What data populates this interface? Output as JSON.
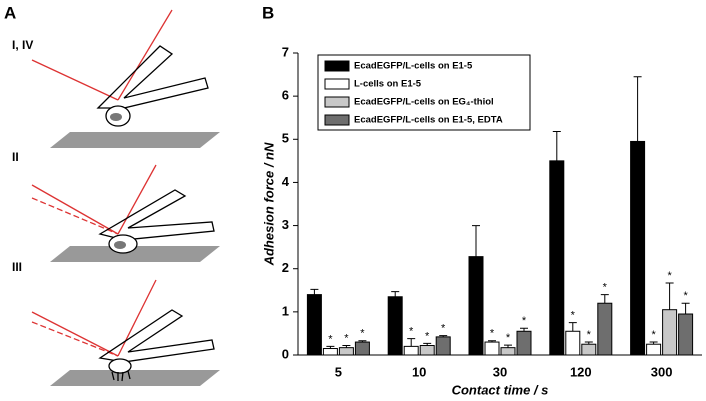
{
  "panel_labels": [
    "A",
    "B"
  ],
  "diagram_labels": [
    "I, IV",
    "II",
    "III"
  ],
  "chart_data": {
    "type": "bar",
    "ylabel": "Adhesion force / nN",
    "xlabel": "Contact time / s",
    "categories": [
      "5",
      "10",
      "30",
      "120",
      "300"
    ],
    "ylim": [
      0,
      7
    ],
    "yticks": [
      0,
      1,
      2,
      3,
      4,
      5,
      6,
      7
    ],
    "significance_marker": "*",
    "legend": "upper left",
    "series": [
      {
        "name": "EcadEGFP/L-cells on E1-5",
        "color": "#000000",
        "values": [
          1.4,
          1.35,
          2.28,
          4.5,
          4.95
        ],
        "errors": [
          0.12,
          0.12,
          0.72,
          0.68,
          1.5
        ]
      },
      {
        "name": "L-cells on E1-5",
        "color": "#ffffff",
        "values": [
          0.15,
          0.2,
          0.3,
          0.55,
          0.25
        ],
        "errors": [
          0.05,
          0.18,
          0.03,
          0.2,
          0.05
        ]
      },
      {
        "name": "EcadEGFP/L-cells on EG₄-thiol",
        "color": "#c8c8c8",
        "values": [
          0.17,
          0.22,
          0.17,
          0.25,
          1.05
        ],
        "errors": [
          0.05,
          0.05,
          0.06,
          0.05,
          0.62
        ]
      },
      {
        "name": "EcadEGFP/L-cells on E1-5, EDTA",
        "color": "#6e6e6e",
        "values": [
          0.3,
          0.42,
          0.55,
          1.2,
          0.95
        ],
        "errors": [
          0.03,
          0.03,
          0.07,
          0.2,
          0.25
        ]
      }
    ]
  }
}
